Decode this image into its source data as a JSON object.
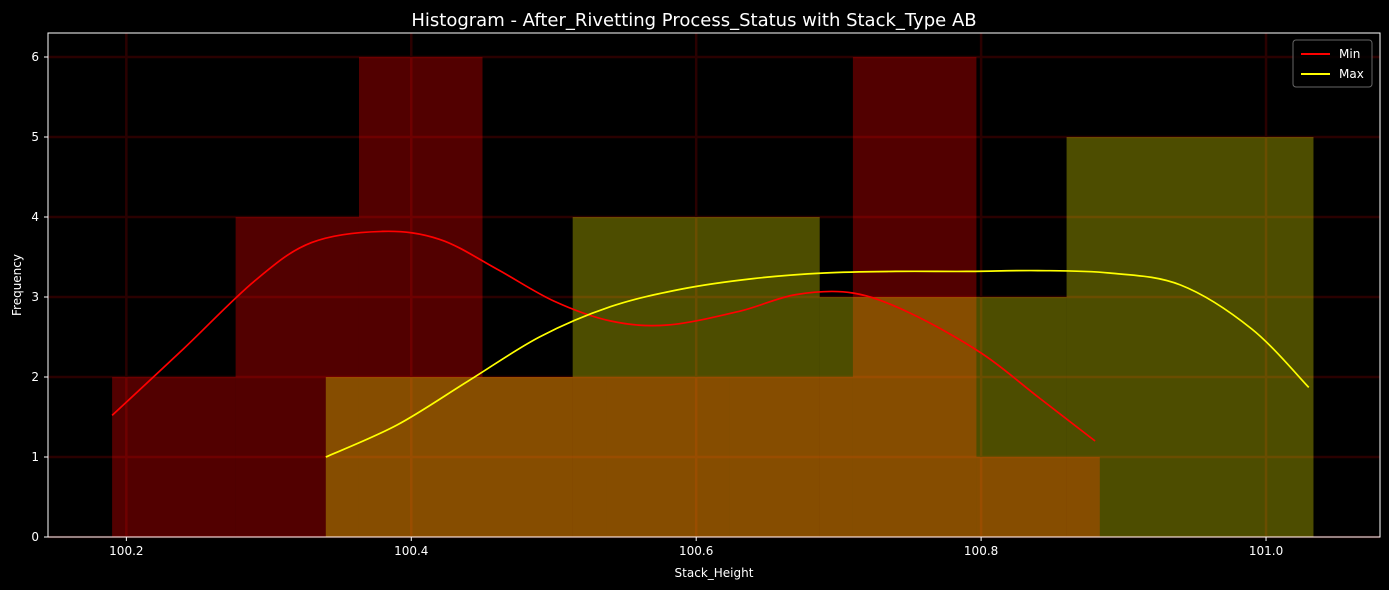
{
  "chart_data": {
    "type": "bar",
    "title": "Histogram - After_Rivetting Process_Status with Stack_Type AB",
    "xlabel": "Stack_Height",
    "ylabel": "Frequency",
    "xlim": [
      100.145,
      101.08
    ],
    "ylim": [
      0,
      6.3
    ],
    "xticks": [
      "100.2",
      "100.4",
      "100.6",
      "100.8",
      "101.0"
    ],
    "yticks": [
      "0",
      "1",
      "2",
      "3",
      "4",
      "5",
      "6"
    ],
    "grid": true,
    "legend_placement": "top-right",
    "series": [
      {
        "name": "Min",
        "color": "#ff0000",
        "bins": [
          {
            "x0": 100.19,
            "x1": 100.2767,
            "count": 2
          },
          {
            "x0": 100.2767,
            "x1": 100.3633,
            "count": 4
          },
          {
            "x0": 100.3633,
            "x1": 100.45,
            "count": 6
          },
          {
            "x0": 100.45,
            "x1": 100.5367,
            "count": 2
          },
          {
            "x0": 100.5367,
            "x1": 100.6233,
            "count": 2
          },
          {
            "x0": 100.6233,
            "x1": 100.71,
            "count": 2
          },
          {
            "x0": 100.71,
            "x1": 100.7967,
            "count": 6
          },
          {
            "x0": 100.7967,
            "x1": 100.8833,
            "count": 1
          }
        ],
        "kde": [
          [
            100.19,
            1.52
          ],
          [
            100.24,
            2.35
          ],
          [
            100.29,
            3.2
          ],
          [
            100.33,
            3.68
          ],
          [
            100.38,
            3.82
          ],
          [
            100.42,
            3.72
          ],
          [
            100.46,
            3.35
          ],
          [
            100.5,
            2.95
          ],
          [
            100.54,
            2.7
          ],
          [
            100.58,
            2.65
          ],
          [
            100.63,
            2.82
          ],
          [
            100.67,
            3.03
          ],
          [
            100.71,
            3.05
          ],
          [
            100.75,
            2.8
          ],
          [
            100.8,
            2.3
          ],
          [
            100.84,
            1.75
          ],
          [
            100.88,
            1.2
          ]
        ]
      },
      {
        "name": "Max",
        "color": "#ffff00",
        "bins": [
          {
            "x0": 100.34,
            "x1": 100.5133,
            "count": 2
          },
          {
            "x0": 100.5133,
            "x1": 100.6867,
            "count": 4
          },
          {
            "x0": 100.6867,
            "x1": 100.86,
            "count": 3
          },
          {
            "x0": 100.86,
            "x1": 101.0333,
            "count": 5
          }
        ],
        "kde": [
          [
            100.34,
            1.0
          ],
          [
            100.39,
            1.4
          ],
          [
            100.44,
            1.95
          ],
          [
            100.49,
            2.5
          ],
          [
            100.54,
            2.88
          ],
          [
            100.59,
            3.1
          ],
          [
            100.64,
            3.23
          ],
          [
            100.69,
            3.3
          ],
          [
            100.74,
            3.32
          ],
          [
            100.79,
            3.32
          ],
          [
            100.84,
            3.33
          ],
          [
            100.89,
            3.3
          ],
          [
            100.94,
            3.15
          ],
          [
            100.99,
            2.6
          ],
          [
            101.03,
            1.87
          ]
        ]
      }
    ]
  }
}
